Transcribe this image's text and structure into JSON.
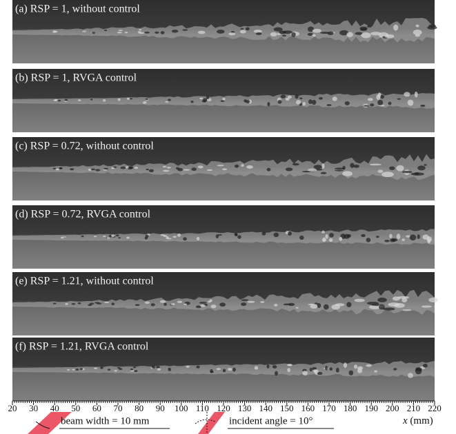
{
  "panels": [
    {
      "label": "(a) RSP = 1, without control"
    },
    {
      "label": "(b) RSP = 1, RVGA control"
    },
    {
      "label": "(c) RSP = 0.72, without control"
    },
    {
      "label": "(d) RSP = 0.72, RVGA control"
    },
    {
      "label": "(e) RSP = 1.21, without control"
    },
    {
      "label": "(f) RSP = 1.21, RVGA control"
    }
  ],
  "axis": {
    "xlim": [
      20,
      220
    ],
    "ticks": [
      20,
      30,
      40,
      50,
      60,
      70,
      80,
      90,
      100,
      110,
      120,
      130,
      140,
      150,
      160,
      170,
      180,
      190,
      200,
      210,
      220
    ],
    "variable": "x",
    "unit": "(mm)"
  },
  "annotations": {
    "beam": "beam width = 10 mm",
    "angle": "incident angle = 10°"
  }
}
